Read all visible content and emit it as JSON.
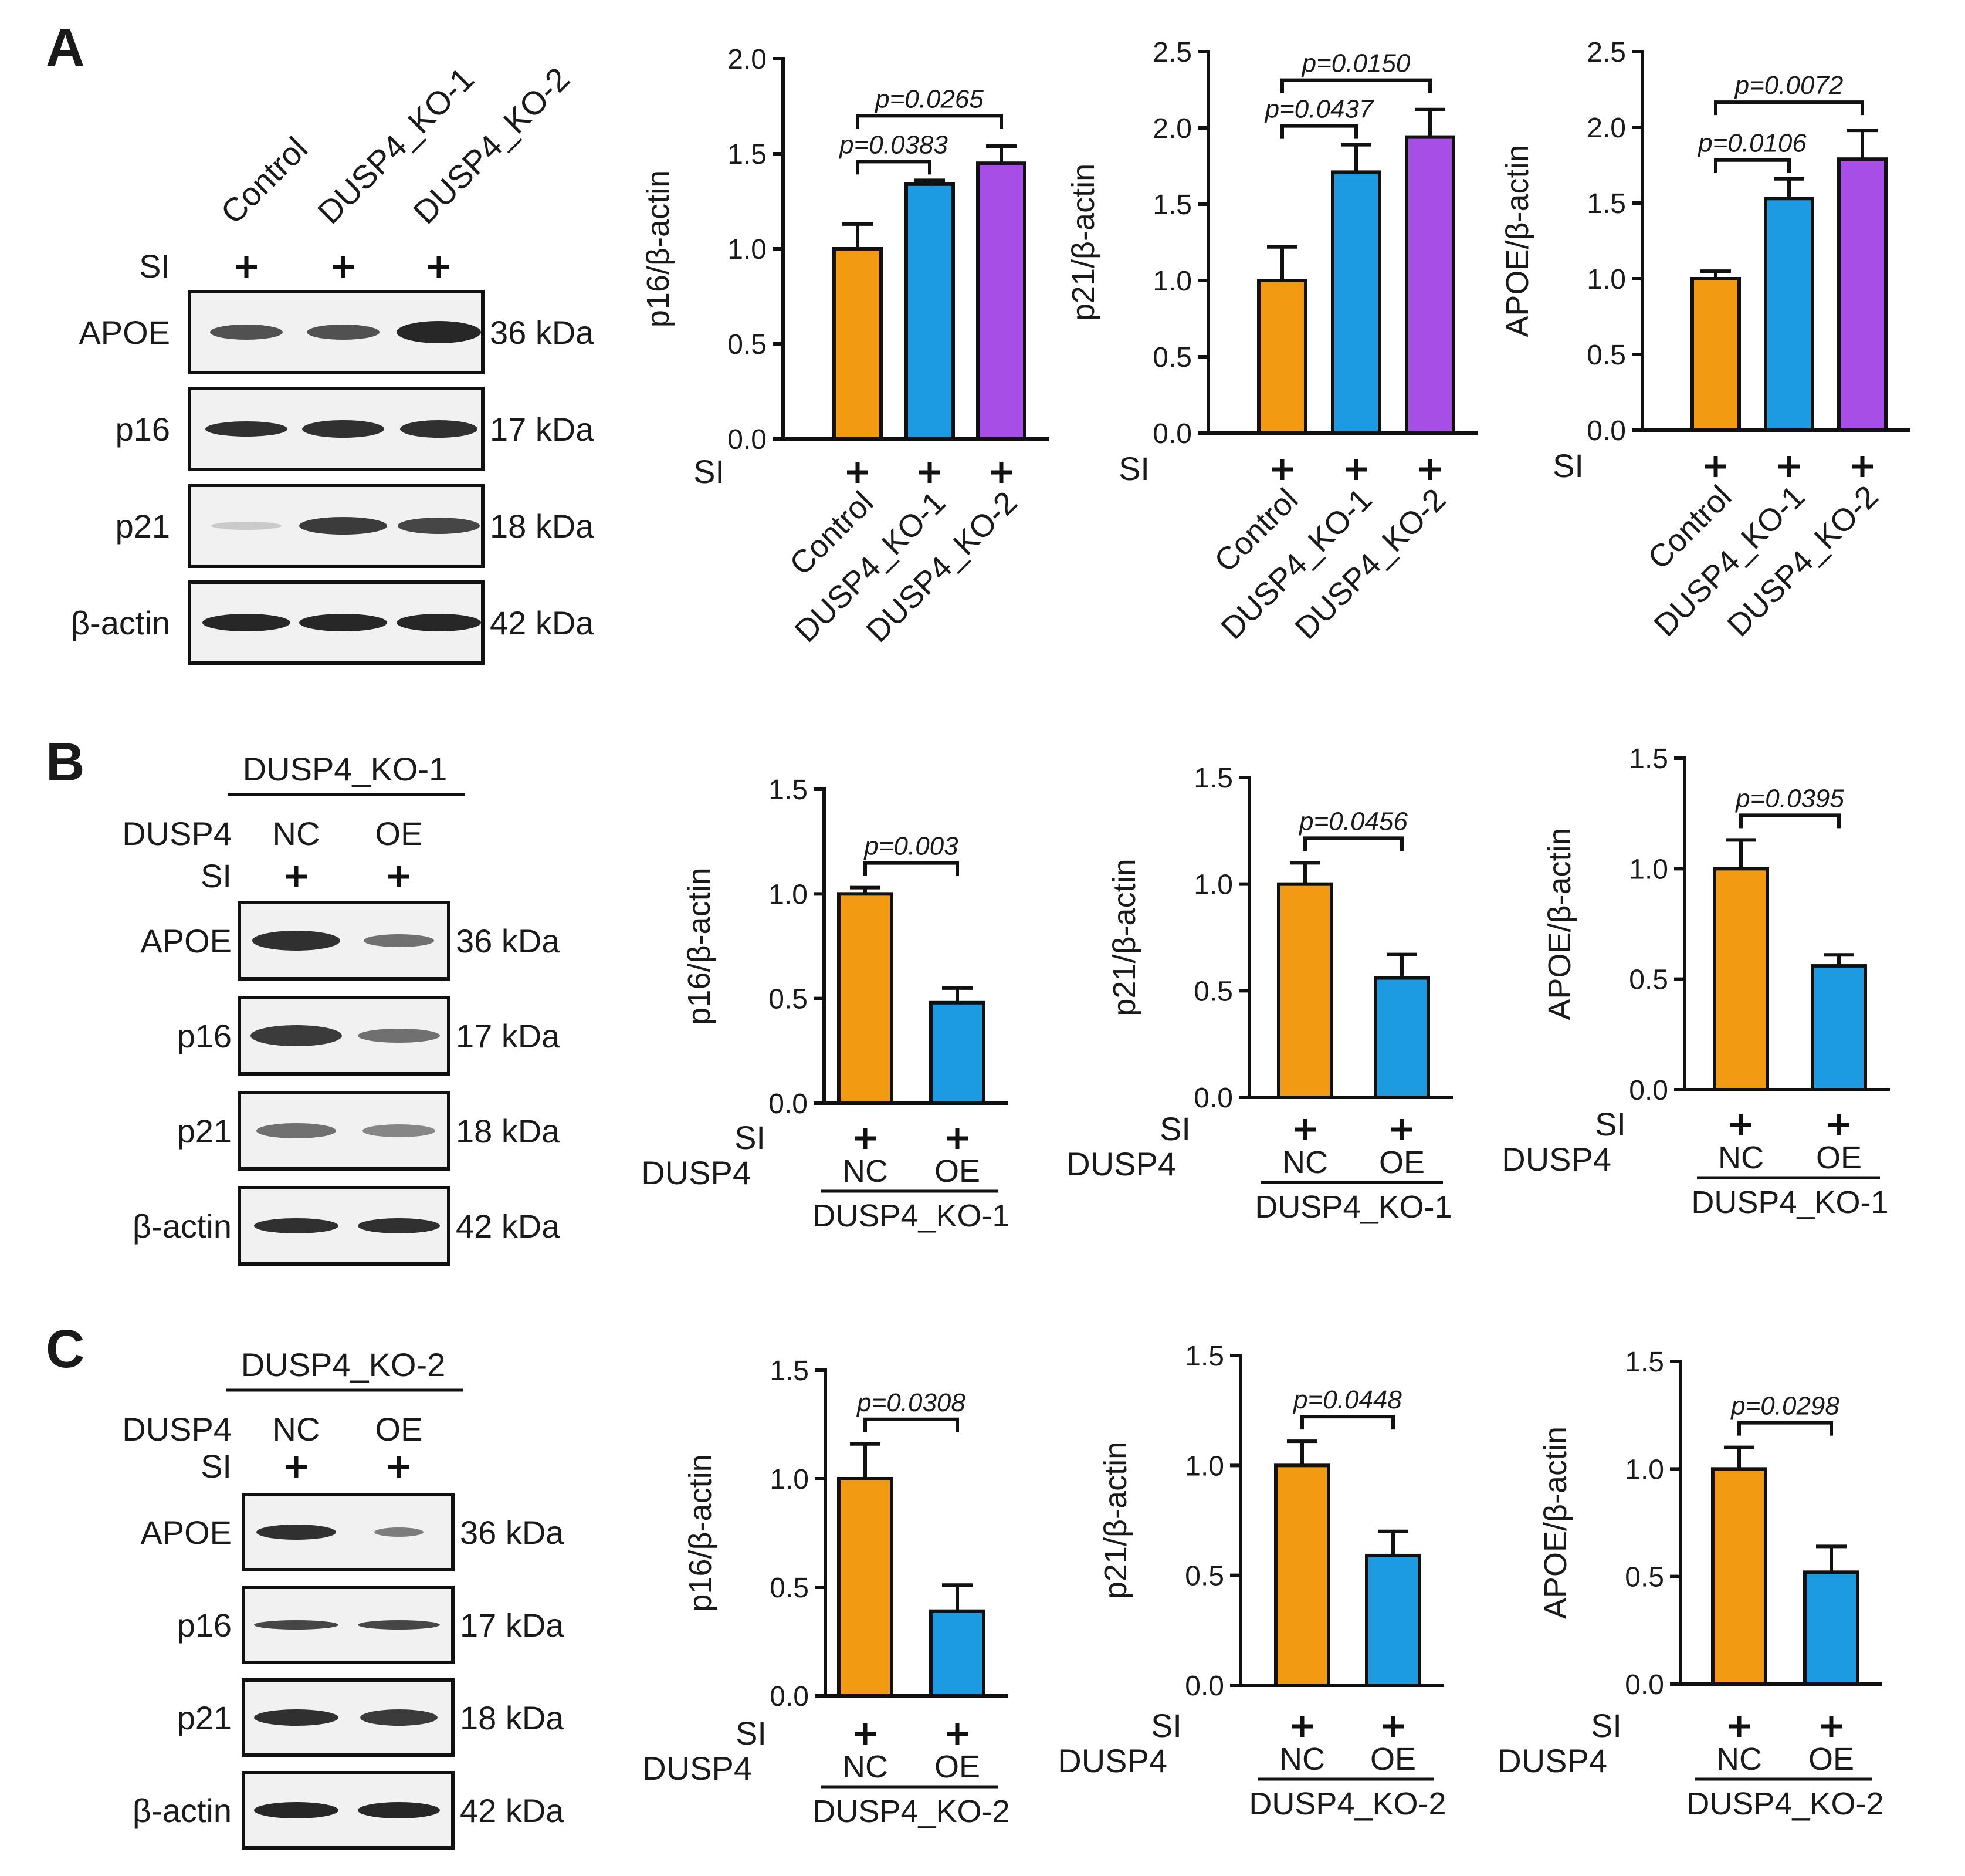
{
  "panels": [
    "A",
    "B",
    "C"
  ],
  "colors": {
    "control": "#f29a12",
    "ko1": "#1c9be2",
    "ko2": "#a74ee6",
    "nc": "#f29a12",
    "oe": "#1c9be2"
  },
  "blots": {
    "A": {
      "columns": [
        "Control",
        "DUSP4_KO-1",
        "DUSP4_KO-2"
      ],
      "si_label": "SI",
      "signs": [
        "+",
        "+",
        "+"
      ],
      "rows": [
        {
          "name": "APOE",
          "kda": "36 kDa"
        },
        {
          "name": "p16",
          "kda": "17 kDa"
        },
        {
          "name": "p21",
          "kda": "18 kDa"
        },
        {
          "name": "β-actin",
          "kda": "42 kDa"
        }
      ]
    },
    "B": {
      "header": "DUSP4_KO-1",
      "dusp4_label": "DUSP4",
      "columns": [
        "NC",
        "OE"
      ],
      "si_label": "SI",
      "signs": [
        "+",
        "+"
      ],
      "rows": [
        {
          "name": "APOE",
          "kda": "36 kDa"
        },
        {
          "name": "p16",
          "kda": "17 kDa"
        },
        {
          "name": "p21",
          "kda": "18 kDa"
        },
        {
          "name": "β-actin",
          "kda": "42 kDa"
        }
      ]
    },
    "C": {
      "header": "DUSP4_KO-2",
      "dusp4_label": "DUSP4",
      "columns": [
        "NC",
        "OE"
      ],
      "si_label": "SI",
      "signs": [
        "+",
        "+"
      ],
      "rows": [
        {
          "name": "APOE",
          "kda": "36 kDa"
        },
        {
          "name": "p16",
          "kda": "17 kDa"
        },
        {
          "name": "p21",
          "kda": "18 kDa"
        },
        {
          "name": "β-actin",
          "kda": "42 kDa"
        }
      ]
    }
  },
  "chart_data": [
    {
      "panel": "A",
      "type": "bar",
      "ylabel": "p16/β-actin",
      "ylim": [
        0,
        2.0
      ],
      "yticks": [
        "0.0",
        "0.5",
        "1.0",
        "1.5",
        "2.0"
      ],
      "categories": [
        "Control",
        "DUSP4_KO-1",
        "DUSP4_KO-2"
      ],
      "values": [
        1.0,
        1.34,
        1.45
      ],
      "errors": [
        0.13,
        0.02,
        0.09
      ],
      "si_label": "SI",
      "signs": [
        "+",
        "+",
        "+"
      ],
      "comparisons": [
        {
          "from": 0,
          "to": 1,
          "label": "p=0.0383"
        },
        {
          "from": 0,
          "to": 2,
          "label": "p=0.0265"
        }
      ]
    },
    {
      "panel": "A",
      "type": "bar",
      "ylabel": "p21/β-actin",
      "ylim": [
        0,
        2.5
      ],
      "yticks": [
        "0.0",
        "0.5",
        "1.0",
        "1.5",
        "2.0",
        "2.5"
      ],
      "categories": [
        "Control",
        "DUSP4_KO-1",
        "DUSP4_KO-2"
      ],
      "values": [
        1.0,
        1.71,
        1.94
      ],
      "errors": [
        0.22,
        0.18,
        0.18
      ],
      "si_label": "SI",
      "signs": [
        "+",
        "+",
        "+"
      ],
      "comparisons": [
        {
          "from": 0,
          "to": 1,
          "label": "p=0.0437"
        },
        {
          "from": 0,
          "to": 2,
          "label": "p=0.0150"
        }
      ]
    },
    {
      "panel": "A",
      "type": "bar",
      "ylabel": "APOE/β-actin",
      "ylim": [
        0,
        2.5
      ],
      "yticks": [
        "0.0",
        "0.5",
        "1.0",
        "1.5",
        "2.0",
        "2.5"
      ],
      "categories": [
        "Control",
        "DUSP4_KO-1",
        "DUSP4_KO-2"
      ],
      "values": [
        1.0,
        1.53,
        1.79
      ],
      "errors": [
        0.05,
        0.13,
        0.19
      ],
      "si_label": "SI",
      "signs": [
        "+",
        "+",
        "+"
      ],
      "comparisons": [
        {
          "from": 0,
          "to": 1,
          "label": "p=0.0106"
        },
        {
          "from": 0,
          "to": 2,
          "label": "p=0.0072"
        }
      ]
    },
    {
      "panel": "B",
      "type": "bar",
      "ylabel": "p16/β-actin",
      "ylim": [
        0,
        1.5
      ],
      "yticks": [
        "0.0",
        "0.5",
        "1.0",
        "1.5"
      ],
      "categories": [
        "NC",
        "OE"
      ],
      "values": [
        1.0,
        0.48
      ],
      "errors": [
        0.03,
        0.07
      ],
      "si_label": "SI",
      "signs": [
        "+",
        "+"
      ],
      "dusp4_label": "DUSP4",
      "group": "DUSP4_KO-1",
      "comparisons": [
        {
          "from": 0,
          "to": 1,
          "label": "p=0.003"
        }
      ]
    },
    {
      "panel": "B",
      "type": "bar",
      "ylabel": "p21/β-actin",
      "ylim": [
        0,
        1.5
      ],
      "yticks": [
        "0.0",
        "0.5",
        "1.0",
        "1.5"
      ],
      "categories": [
        "NC",
        "OE"
      ],
      "values": [
        1.0,
        0.56
      ],
      "errors": [
        0.1,
        0.11
      ],
      "si_label": "SI",
      "signs": [
        "+",
        "+"
      ],
      "dusp4_label": "DUSP4",
      "group": "DUSP4_KO-1",
      "comparisons": [
        {
          "from": 0,
          "to": 1,
          "label": "p=0.0456"
        }
      ]
    },
    {
      "panel": "B",
      "type": "bar",
      "ylabel": "APOE/β-actin",
      "ylim": [
        0,
        1.5
      ],
      "yticks": [
        "0.0",
        "0.5",
        "1.0",
        "1.5"
      ],
      "categories": [
        "NC",
        "OE"
      ],
      "values": [
        1.0,
        0.56
      ],
      "errors": [
        0.13,
        0.05
      ],
      "si_label": "SI",
      "signs": [
        "+",
        "+"
      ],
      "dusp4_label": "DUSP4",
      "group": "DUSP4_KO-1",
      "comparisons": [
        {
          "from": 0,
          "to": 1,
          "label": "p=0.0395"
        }
      ]
    },
    {
      "panel": "C",
      "type": "bar",
      "ylabel": "p16/β-actin",
      "ylim": [
        0,
        1.5
      ],
      "yticks": [
        "0.0",
        "0.5",
        "1.0",
        "1.5"
      ],
      "categories": [
        "NC",
        "OE"
      ],
      "values": [
        1.0,
        0.39
      ],
      "errors": [
        0.16,
        0.12
      ],
      "si_label": "SI",
      "signs": [
        "+",
        "+"
      ],
      "dusp4_label": "DUSP4",
      "group": "DUSP4_KO-2",
      "comparisons": [
        {
          "from": 0,
          "to": 1,
          "label": "p=0.0308"
        }
      ]
    },
    {
      "panel": "C",
      "type": "bar",
      "ylabel": "p21/β-actin",
      "ylim": [
        0,
        1.5
      ],
      "yticks": [
        "0.0",
        "0.5",
        "1.0",
        "1.5"
      ],
      "categories": [
        "NC",
        "OE"
      ],
      "values": [
        1.0,
        0.59
      ],
      "errors": [
        0.11,
        0.11
      ],
      "si_label": "SI",
      "signs": [
        "+",
        "+"
      ],
      "dusp4_label": "DUSP4",
      "group": "DUSP4_KO-2",
      "comparisons": [
        {
          "from": 0,
          "to": 1,
          "label": "p=0.0448"
        }
      ]
    },
    {
      "panel": "C",
      "type": "bar",
      "ylabel": "APOE/β-actin",
      "ylim": [
        0,
        1.5
      ],
      "yticks": [
        "0.0",
        "0.5",
        "1.0",
        "1.5"
      ],
      "categories": [
        "NC",
        "OE"
      ],
      "values": [
        1.0,
        0.52
      ],
      "errors": [
        0.1,
        0.12
      ],
      "si_label": "SI",
      "signs": [
        "+",
        "+"
      ],
      "dusp4_label": "DUSP4",
      "group": "DUSP4_KO-2",
      "comparisons": [
        {
          "from": 0,
          "to": 1,
          "label": "p=0.0298"
        }
      ]
    }
  ]
}
